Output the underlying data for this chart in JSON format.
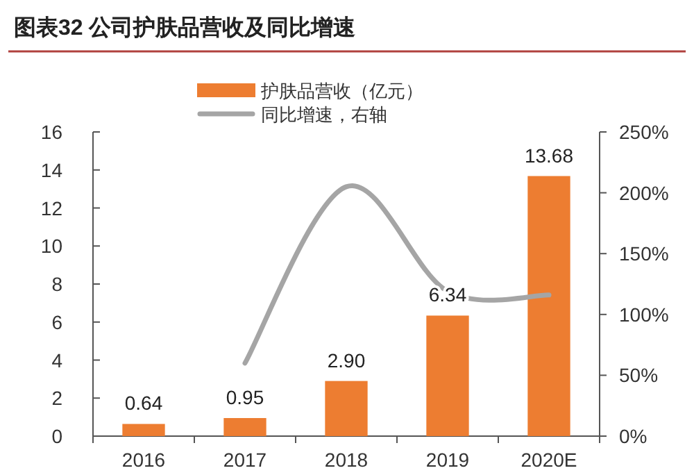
{
  "chart_data": {
    "type": "bar",
    "title": "图表32    公司护肤品营收及同比增速",
    "categories": [
      "2016",
      "2017",
      "2018",
      "2019",
      "2020E"
    ],
    "series": [
      {
        "name": "护肤品营收（亿元）",
        "color": "#ed7d31",
        "values": [
          0.64,
          0.95,
          2.9,
          6.34,
          13.68
        ],
        "value_labels": [
          "0.64",
          "0.95",
          "2.90",
          "6.34",
          "13.68"
        ]
      },
      {
        "name": "同比增速，右轴",
        "type": "line",
        "axis": "y2",
        "color": "#a5a5a5",
        "values": [
          null,
          60,
          205,
          119,
          116
        ]
      }
    ],
    "ylim": [
      0,
      16
    ],
    "yticks": [
      0,
      2,
      4,
      6,
      8,
      10,
      12,
      14,
      16
    ],
    "y2lim": [
      0,
      250
    ],
    "y2ticks": [
      {
        "value": 0,
        "label": "0%"
      },
      {
        "value": 50,
        "label": "50%"
      },
      {
        "value": 100,
        "label": "100%"
      },
      {
        "value": 150,
        "label": "150%"
      },
      {
        "value": 200,
        "label": "200%"
      },
      {
        "value": 250,
        "label": "250%"
      }
    ],
    "legend": "top",
    "marker": "none"
  }
}
